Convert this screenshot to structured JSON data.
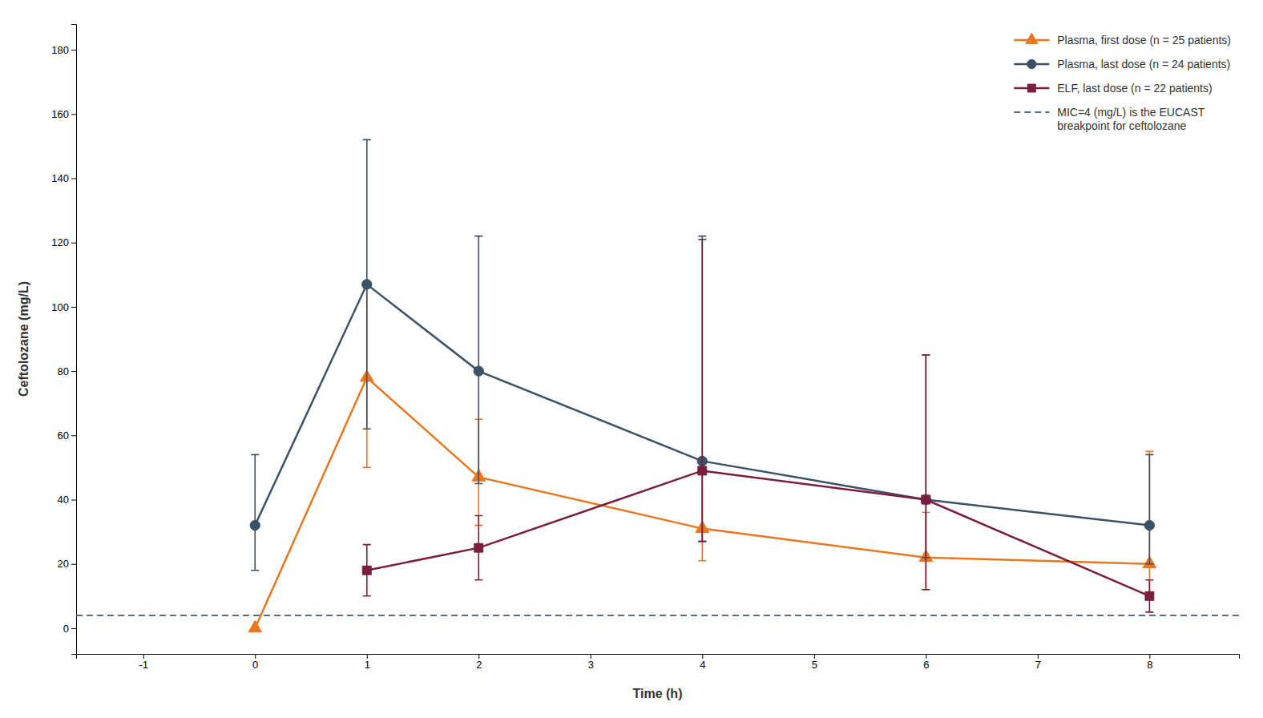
{
  "chart_data": {
    "type": "line",
    "xlabel": "Time (h)",
    "ylabel": "Ceftolozane (mg/L)",
    "xlim": [
      -1.6,
      8.8
    ],
    "ylim": [
      -8,
      188
    ],
    "xticks": [
      -1,
      0,
      1,
      2,
      3,
      4,
      5,
      6,
      7,
      8
    ],
    "yticks": [
      0,
      20,
      40,
      60,
      80,
      100,
      120,
      140,
      160,
      180
    ],
    "grid": false,
    "legend": "upper right",
    "series": [
      {
        "name": "Plasma, first dose (n = 25 patients)",
        "color": "#e87722",
        "marker": "triangle",
        "line_style": "solid",
        "x": [
          0,
          1,
          2,
          4,
          6,
          8
        ],
        "values": [
          0,
          78,
          47,
          31,
          22,
          20
        ],
        "error_low": [
          0,
          28,
          15,
          10,
          10,
          10
        ],
        "error_high": [
          0,
          28,
          18,
          18,
          14,
          35
        ]
      },
      {
        "name": "Plasma, last dose (n = 24 patients)",
        "color": "#3d5166",
        "marker": "circle",
        "line_style": "solid",
        "x": [
          0,
          1,
          2,
          4,
          6,
          8
        ],
        "values": [
          32,
          107,
          80,
          52,
          40,
          32
        ],
        "error_low": [
          14,
          45,
          35,
          25,
          18,
          12
        ],
        "error_high": [
          22,
          45,
          42,
          70,
          45,
          22
        ]
      },
      {
        "name": "ELF, last dose (n = 22 patients)",
        "color": "#7b1e3e",
        "marker": "square",
        "line_style": "solid",
        "x": [
          1,
          2,
          4,
          6,
          8
        ],
        "values": [
          18,
          25,
          49,
          40,
          10
        ],
        "error_low": [
          8,
          10,
          22,
          28,
          5
        ],
        "error_high": [
          8,
          10,
          72,
          45,
          5
        ]
      }
    ],
    "reference_line": {
      "value": 4,
      "label": "MIC=4 (mg/L) is the EUCAST\nbreakpoint for ceftolozane",
      "color": "#5a6e80",
      "line_style": "dashed"
    }
  }
}
